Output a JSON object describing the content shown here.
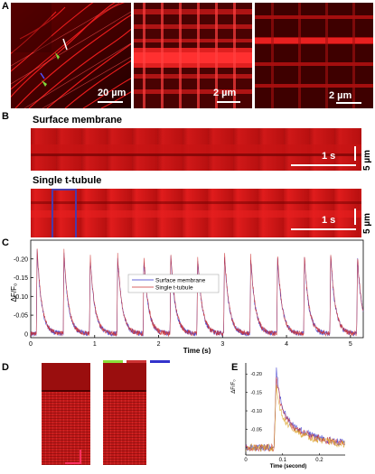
{
  "panel_letters": {
    "a": "A",
    "b": "B",
    "c": "C",
    "d": "D",
    "e": "E"
  },
  "panel_a": {
    "scale1": "20 µm",
    "scale2": "2 µm",
    "scale3": "2 µm"
  },
  "panel_b": {
    "row1_title": "Surface membrane",
    "row2_title": "Single t-tubule",
    "time_scale": "1 s",
    "space_scale": "5 µm"
  },
  "chart_c": {
    "type": "line",
    "ylabel": "ΔF/F₀",
    "xlabel": "Time (s)",
    "xlim": [
      0,
      5.2
    ],
    "ylim": [
      0.01,
      -0.25
    ],
    "x_ticks": [
      "0",
      "1",
      "2",
      "3",
      "4",
      "5"
    ],
    "y_ticks": [
      "-0.20",
      "-0.15",
      "-0.10",
      "-0.05",
      "0"
    ],
    "y_tick_values": [
      -0.2,
      -0.15,
      -0.1,
      -0.05,
      0
    ],
    "legend": [
      "Surface membrane",
      "Single t-tubule"
    ],
    "series_colors": [
      "#3333cc",
      "#cc3333"
    ],
    "peak_times": [
      0.1,
      0.52,
      0.93,
      1.36,
      1.77,
      2.19,
      2.61,
      3.03,
      3.44,
      3.86,
      4.28,
      4.69,
      5.11
    ],
    "peak_values": [
      -0.23,
      -0.22,
      -0.21,
      -0.21,
      -0.21,
      -0.22,
      -0.21,
      -0.22,
      -0.21,
      -0.21,
      -0.21,
      -0.22,
      -0.21
    ]
  },
  "legend_d_colors": [
    "#8adf3a",
    "#cc3333",
    "#3333cc"
  ],
  "chart_e": {
    "type": "line",
    "ylabel": "ΔF/F₀",
    "xlabel": "Time (second)",
    "xlim": [
      0,
      0.27
    ],
    "ylim": [
      0.02,
      -0.23
    ],
    "x_ticks": [
      "0",
      "0.1",
      "0.2"
    ],
    "x_tick_values": [
      0,
      0.1,
      0.2
    ],
    "y_ticks": [
      "-0.20",
      "-0.15",
      "-0.10",
      "-0.05",
      "0"
    ],
    "y_tick_values": [
      -0.2,
      -0.15,
      -0.1,
      -0.05,
      0
    ],
    "peak_time": 0.083,
    "series": [
      {
        "color": "#3333cc",
        "peak": -0.215
      },
      {
        "color": "#cc3333",
        "peak": -0.2
      },
      {
        "color": "#d9a020",
        "peak": -0.17
      }
    ]
  }
}
